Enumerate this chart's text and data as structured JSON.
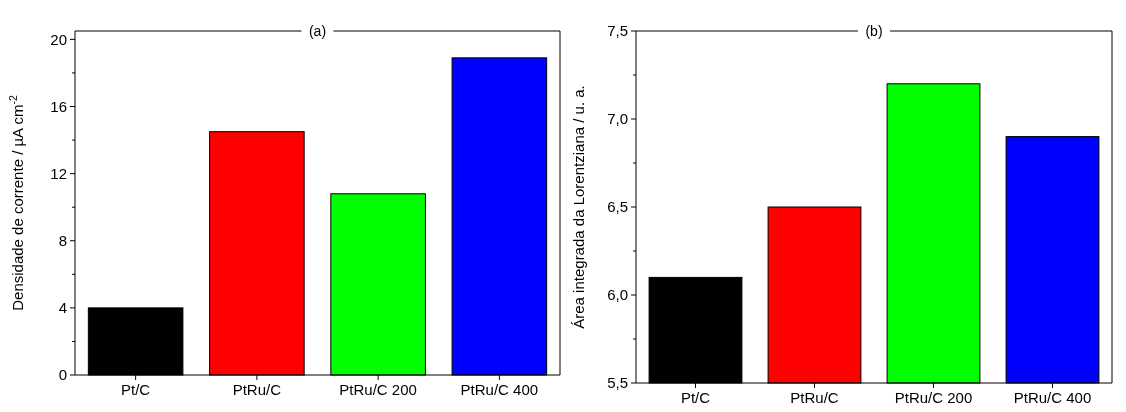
{
  "chart_data": [
    {
      "type": "bar",
      "title": "(a)",
      "ylabel": "Densidade de corrente / µA cm$^{-2}$",
      "categories": [
        "Pt/C",
        "PtRu/C",
        "PtRu/C 200",
        "PtRu/C 400"
      ],
      "values": [
        4.0,
        14.5,
        10.8,
        18.9
      ],
      "colors": [
        "#000000",
        "#ff0000",
        "#00ff00",
        "#0000ff"
      ],
      "ylim": [
        0,
        20.5
      ],
      "yticks": [
        0,
        {
          "value": 2,
          "label": null
        },
        4,
        {
          "value": 6,
          "label": null
        },
        8,
        {
          "value": 10,
          "label": null
        },
        12,
        {
          "value": 14,
          "label": null
        },
        16,
        {
          "value": 18,
          "label": null
        },
        20
      ]
    },
    {
      "type": "bar",
      "title": "(b)",
      "ylabel": "Área integrada da Lorentziana / u. a.",
      "categories": [
        "Pt/C",
        "PtRu/C",
        "PtRu/C 200",
        "PtRu/C 400"
      ],
      "values": [
        6.1,
        6.5,
        7.2,
        6.9
      ],
      "colors": [
        "#000000",
        "#ff0000",
        "#00ff00",
        "#0000ff"
      ],
      "ylim": [
        5.5,
        7.5
      ],
      "yticks": [
        {
          "value": 5.5,
          "label": "5,5"
        },
        {
          "value": 5.75,
          "label": null
        },
        {
          "value": 6.0,
          "label": "6,0"
        },
        {
          "value": 6.25,
          "label": null
        },
        {
          "value": 6.5,
          "label": "6,5"
        },
        {
          "value": 6.75,
          "label": null
        },
        {
          "value": 7.0,
          "label": "7,0"
        },
        {
          "value": 7.25,
          "label": null
        },
        {
          "value": 7.5,
          "label": "7,5"
        }
      ]
    }
  ]
}
